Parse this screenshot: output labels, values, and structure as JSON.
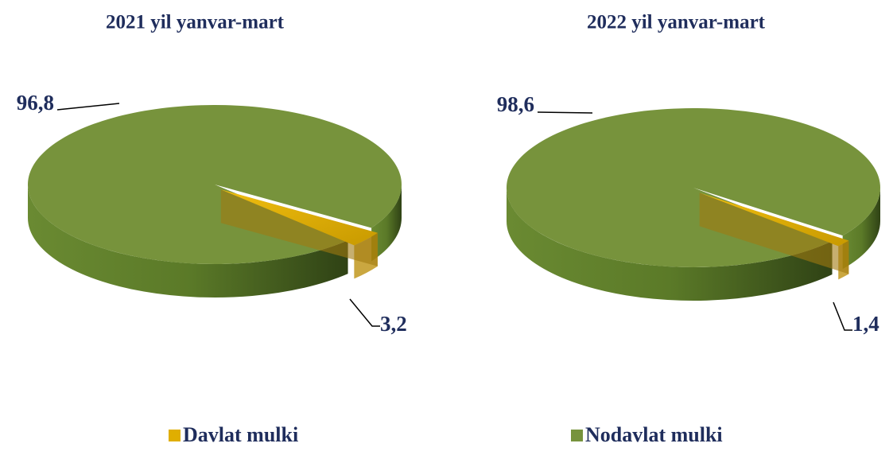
{
  "chart_data": [
    {
      "type": "pie",
      "title": "2021 yil yanvar-mart",
      "values": [
        3.2,
        96.8
      ],
      "value_labels": [
        "3,2",
        "96,8"
      ]
    },
    {
      "type": "pie",
      "title": "2022 yil yanvar-mart",
      "values": [
        1.4,
        98.6
      ],
      "value_labels": [
        "1,4",
        "98,6"
      ]
    }
  ],
  "legend": [
    {
      "name": "Davlat mulki",
      "color": "#e0ae00"
    },
    {
      "name": "Nodavlat mulki",
      "color": "#77933c"
    }
  ]
}
